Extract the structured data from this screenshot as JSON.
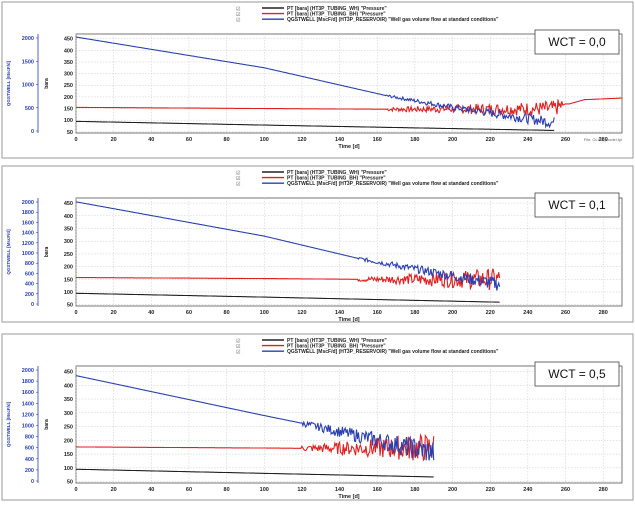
{
  "panels": [
    {
      "wct_label": "WCT = 0,0",
      "legend": [
        {
          "label": "PT [bara] (HT3P_TUBING_WH) \"Pressure\"",
          "color": "#222222"
        },
        {
          "label": "PT [bara] (HT3P_TUBING_BH) \"Pressure\"",
          "color": "#e02020"
        },
        {
          "label": "QGSTWELL [MscF/d] (HT3P_RESERVOIR) \"Well gas volume flow at standard conditions\"",
          "color": "#2a3fb0"
        }
      ],
      "xlabel": "Time [d]",
      "left_axis_label": "QGSTWELL [MscF/d]",
      "right_axis_label": "bara",
      "left_ticks": [
        "2000",
        "1500",
        "1000",
        "500",
        "0"
      ],
      "right_ticks": [
        "450",
        "400",
        "350",
        "300",
        "250",
        "200",
        "150",
        "100",
        "50"
      ],
      "x_ticks": [
        "0",
        "20",
        "40",
        "60",
        "80",
        "100",
        "120",
        "140",
        "160",
        "180",
        "200",
        "220",
        "240",
        "260",
        "280"
      ],
      "footnote": "File: OLGA_model.tpl"
    },
    {
      "wct_label": "WCT = 0,1",
      "legend": [
        {
          "label": "PT [bara] (HT3P_TUBING_WH) \"Pressure\"",
          "color": "#222222"
        },
        {
          "label": "PT [bara] (HT3P_TUBING_BH) \"Pressure\"",
          "color": "#e02020"
        },
        {
          "label": "QGSTWELL [MscF/d] (HT3P_RESERVOIR) \"Well gas volume flow at standard conditions\"",
          "color": "#2a3fb0"
        }
      ],
      "xlabel": "Time [d]",
      "left_axis_label": "QGSTWELL [MscF/d]",
      "right_axis_label": "bara",
      "left_ticks": [
        "2000",
        "1800",
        "1600",
        "1400",
        "1200",
        "1000",
        "800",
        "600",
        "400",
        "200",
        "0"
      ],
      "right_ticks": [
        "450",
        "400",
        "350",
        "300",
        "250",
        "200",
        "150",
        "100",
        "50"
      ],
      "x_ticks": [
        "0",
        "20",
        "40",
        "60",
        "80",
        "100",
        "120",
        "140",
        "160",
        "180",
        "200",
        "220",
        "240",
        "260",
        "280"
      ],
      "footnote": ""
    },
    {
      "wct_label": "WCT = 0,5",
      "legend": [
        {
          "label": "PT [bara] (HT3P_TUBING_WH) \"Pressure\"",
          "color": "#222222"
        },
        {
          "label": "PT [bara] (HT3P_TUBING_BH) \"Pressure\"",
          "color": "#e02020"
        },
        {
          "label": "QGSTWELL [MscF/d] (HT3P_RESERVOIR) \"Well gas volume flow at standard conditions\"",
          "color": "#2a3fb0"
        }
      ],
      "xlabel": "Time [d]",
      "left_axis_label": "QGSTWELL [MscF/d]",
      "right_axis_label": "bara",
      "left_ticks": [
        "2000",
        "1800",
        "1600",
        "1400",
        "1200",
        "1000",
        "800",
        "600",
        "400",
        "200",
        "0"
      ],
      "right_ticks": [
        "450",
        "400",
        "350",
        "300",
        "250",
        "200",
        "150",
        "100",
        "50"
      ],
      "x_ticks": [
        "0",
        "20",
        "40",
        "60",
        "80",
        "100",
        "120",
        "140",
        "160",
        "180",
        "200",
        "220",
        "240",
        "260",
        "280"
      ],
      "footnote": ""
    }
  ],
  "chart_data": [
    {
      "type": "line",
      "xlabel": "Time [d]",
      "xlim": [
        0,
        290
      ],
      "y_right_label": "bara",
      "ylim_right": [
        45,
        470
      ],
      "y_left_label": "QGSTWELL [MscF/d]",
      "ylim_left": [
        0,
        2100
      ],
      "series": [
        {
          "name": "PT [bara] (HT3P_TUBING_WH) \"Pressure\"",
          "axis": "right",
          "color": "#222222",
          "x": [
            0,
            100,
            200,
            254
          ],
          "y": [
            95,
            79,
            64,
            56
          ]
        },
        {
          "name": "PT [bara] (HT3P_TUBING_BH) \"Pressure\"",
          "axis": "right",
          "color": "#e02020",
          "x": [
            0,
            100,
            165,
            180,
            200,
            220,
            240,
            254,
            260,
            262,
            270,
            290
          ],
          "y": [
            155,
            150,
            147,
            147,
            148,
            148,
            148,
            150,
            170,
            170,
            188,
            195
          ],
          "oscillation_from": 165,
          "oscillation_to": 258,
          "oscillation_amplitude": [
            8,
            35
          ]
        },
        {
          "name": "QGSTWELL [MscF/d] (HT3P_RESERVOIR) \"Well gas volume flow at standard conditions\"",
          "axis": "right",
          "color": "#2a3fb0",
          "x": [
            0,
            100,
            165,
            200,
            254
          ],
          "y": [
            457,
            325,
            205,
            155,
            90
          ],
          "oscillation_from": 165,
          "oscillation_to": 254,
          "oscillation_amplitude": [
            5,
            25
          ]
        }
      ]
    },
    {
      "type": "line",
      "xlabel": "Time [d]",
      "xlim": [
        0,
        290
      ],
      "y_right_label": "bara",
      "ylim_right": [
        45,
        470
      ],
      "y_left_label": "QGSTWELL [MscF/d]",
      "ylim_left": [
        0,
        2100
      ],
      "series": [
        {
          "name": "PT [bara] (HT3P_TUBING_WH) \"Pressure\"",
          "axis": "right",
          "color": "#222222",
          "x": [
            0,
            100,
            225
          ],
          "y": [
            95,
            80,
            60
          ]
        },
        {
          "name": "PT [bara] (HT3P_TUBING_BH) \"Pressure\"",
          "axis": "right",
          "color": "#e02020",
          "x": [
            0,
            100,
            150,
            225
          ],
          "y": [
            157,
            153,
            150,
            150
          ],
          "oscillation_from": 150,
          "oscillation_to": 225,
          "oscillation_amplitude": [
            8,
            45
          ]
        },
        {
          "name": "QGSTWELL [MscF/d] (HT3P_RESERVOIR) \"Well gas volume flow at standard conditions\"",
          "axis": "right",
          "color": "#2a3fb0",
          "x": [
            0,
            100,
            150,
            225
          ],
          "y": [
            455,
            320,
            232,
            130
          ],
          "oscillation_from": 150,
          "oscillation_to": 225,
          "oscillation_amplitude": [
            6,
            28
          ]
        }
      ]
    },
    {
      "type": "line",
      "xlabel": "Time [d]",
      "xlim": [
        0,
        290
      ],
      "y_right_label": "bara",
      "ylim_right": [
        45,
        470
      ],
      "y_left_label": "QGSTWELL [MscF/d]",
      "ylim_left": [
        0,
        2100
      ],
      "series": [
        {
          "name": "PT [bara] (HT3P_TUBING_WH) \"Pressure\"",
          "axis": "right",
          "color": "#222222",
          "x": [
            0,
            100,
            190
          ],
          "y": [
            95,
            80,
            67
          ]
        },
        {
          "name": "PT [bara] (HT3P_TUBING_BH) \"Pressure\"",
          "axis": "right",
          "color": "#e02020",
          "x": [
            0,
            100,
            120,
            190
          ],
          "y": [
            176,
            172,
            171,
            173
          ],
          "oscillation_from": 120,
          "oscillation_to": 190,
          "oscillation_amplitude": [
            10,
            55
          ]
        },
        {
          "name": "QGSTWELL [MscF/d] (HT3P_RESERVOIR) \"Well gas volume flow at standard conditions\"",
          "axis": "right",
          "color": "#2a3fb0",
          "x": [
            0,
            100,
            120,
            190
          ],
          "y": [
            435,
            290,
            262,
            155
          ],
          "oscillation_from": 120,
          "oscillation_to": 190,
          "oscillation_amplitude": [
            10,
            45
          ]
        }
      ]
    }
  ]
}
